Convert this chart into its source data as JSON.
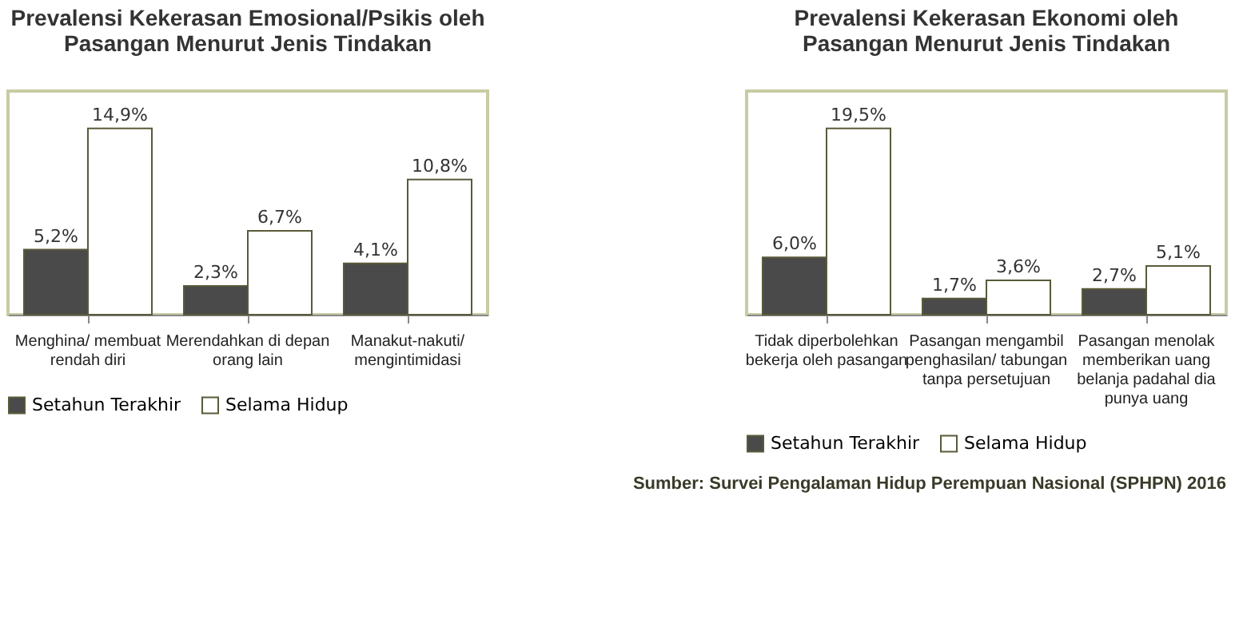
{
  "chart_data": [
    {
      "type": "bar",
      "title": "Prevalensi Kekerasan Emosional/Psikis oleh\nPasangan Menurut Jenis Tindakan",
      "categories": [
        "Menghina/ membuat\nrendah diri",
        "Merendahkan di depan\norang lain",
        "Manakut-nakuti/\nmengintimidasi"
      ],
      "series": [
        {
          "name": "Setahun Terakhir",
          "color": "#4a4a4a",
          "values": [
            5.2,
            2.3,
            4.1
          ],
          "value_labels": [
            "5,2%",
            "2,3%",
            "4,1%"
          ]
        },
        {
          "name": "Selama Hidup",
          "color": "#ffffff",
          "values": [
            14.9,
            6.7,
            10.8
          ],
          "value_labels": [
            "14,9%",
            "6,7%",
            "10,8%"
          ]
        }
      ],
      "legend": "bottom"
    },
    {
      "type": "bar",
      "title": "Prevalensi Kekerasan Ekonomi oleh\nPasangan Menurut Jenis Tindakan",
      "categories": [
        "Tidak diperbolehkan\nbekerja oleh pasangan",
        "Pasangan mengambil\npenghasilan/ tabungan\ntanpa persetujuan",
        "Pasangan menolak\nmemberikan uang\nbelanja padahal dia\npunya uang"
      ],
      "series": [
        {
          "name": "Setahun Terakhir",
          "color": "#4a4a4a",
          "values": [
            6.0,
            1.7,
            2.7
          ],
          "value_labels": [
            "6,0%",
            "1,7%",
            "2,7%"
          ]
        },
        {
          "name": "Selama Hidup",
          "color": "#ffffff",
          "values": [
            19.5,
            3.6,
            5.1
          ],
          "value_labels": [
            "19,5%",
            "3,6%",
            "5,1%"
          ]
        }
      ],
      "legend": "bottom",
      "annotations": [
        "Sumber: Survei Pengalaman Hidup Perempuan Nasional (SPHPN) 2016"
      ]
    }
  ]
}
